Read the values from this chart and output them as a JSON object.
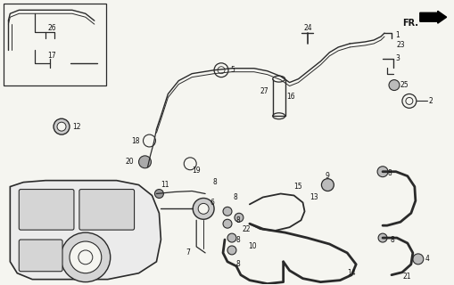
{
  "bg_color": "#f5f5f0",
  "line_color": "#2a2a2a",
  "text_color": "#111111",
  "fig_width": 5.1,
  "fig_height": 3.2,
  "dpi": 100
}
